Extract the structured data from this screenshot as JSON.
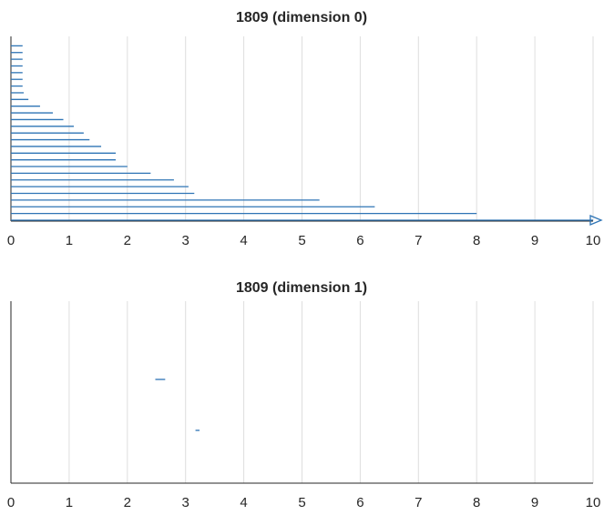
{
  "chart_data": [
    {
      "type": "barcode",
      "title": "1809 (dimension 0)",
      "xlim": [
        0,
        10
      ],
      "x_ticks": [
        "0",
        "1",
        "2",
        "3",
        "4",
        "5",
        "6",
        "7",
        "8",
        "9",
        "10"
      ],
      "grid": "vertical",
      "arrow_at_max": true,
      "bars": [
        {
          "birth": 0,
          "death": 0.2
        },
        {
          "birth": 0,
          "death": 0.2
        },
        {
          "birth": 0,
          "death": 0.2
        },
        {
          "birth": 0,
          "death": 0.2
        },
        {
          "birth": 0,
          "death": 0.2
        },
        {
          "birth": 0,
          "death": 0.2
        },
        {
          "birth": 0,
          "death": 0.2
        },
        {
          "birth": 0,
          "death": 0.22
        },
        {
          "birth": 0,
          "death": 0.3
        },
        {
          "birth": 0,
          "death": 0.5
        },
        {
          "birth": 0,
          "death": 0.72
        },
        {
          "birth": 0,
          "death": 0.9
        },
        {
          "birth": 0,
          "death": 1.08
        },
        {
          "birth": 0,
          "death": 1.25
        },
        {
          "birth": 0,
          "death": 1.35
        },
        {
          "birth": 0,
          "death": 1.55
        },
        {
          "birth": 0,
          "death": 1.8
        },
        {
          "birth": 0,
          "death": 1.8
        },
        {
          "birth": 0,
          "death": 2.0
        },
        {
          "birth": 0,
          "death": 2.4
        },
        {
          "birth": 0,
          "death": 2.8
        },
        {
          "birth": 0,
          "death": 3.05
        },
        {
          "birth": 0,
          "death": 3.15
        },
        {
          "birth": 0,
          "death": 5.3
        },
        {
          "birth": 0,
          "death": 6.25
        },
        {
          "birth": 0,
          "death": 8.0
        },
        {
          "birth": 0,
          "death": 10
        }
      ]
    },
    {
      "type": "barcode",
      "title": "1809 (dimension 1)",
      "xlim": [
        0,
        10
      ],
      "x_ticks": [
        "0",
        "1",
        "2",
        "3",
        "4",
        "5",
        "6",
        "7",
        "8",
        "9",
        "10"
      ],
      "grid": "vertical",
      "bars": [
        {
          "birth": 2.48,
          "death": 2.65,
          "level": 0.43
        },
        {
          "birth": 3.17,
          "death": 3.24,
          "level": 0.71
        }
      ]
    }
  ],
  "colors": {
    "bar": "#2e74b5",
    "grid": "#dedede",
    "axis": "#262626",
    "text": "#262626"
  }
}
